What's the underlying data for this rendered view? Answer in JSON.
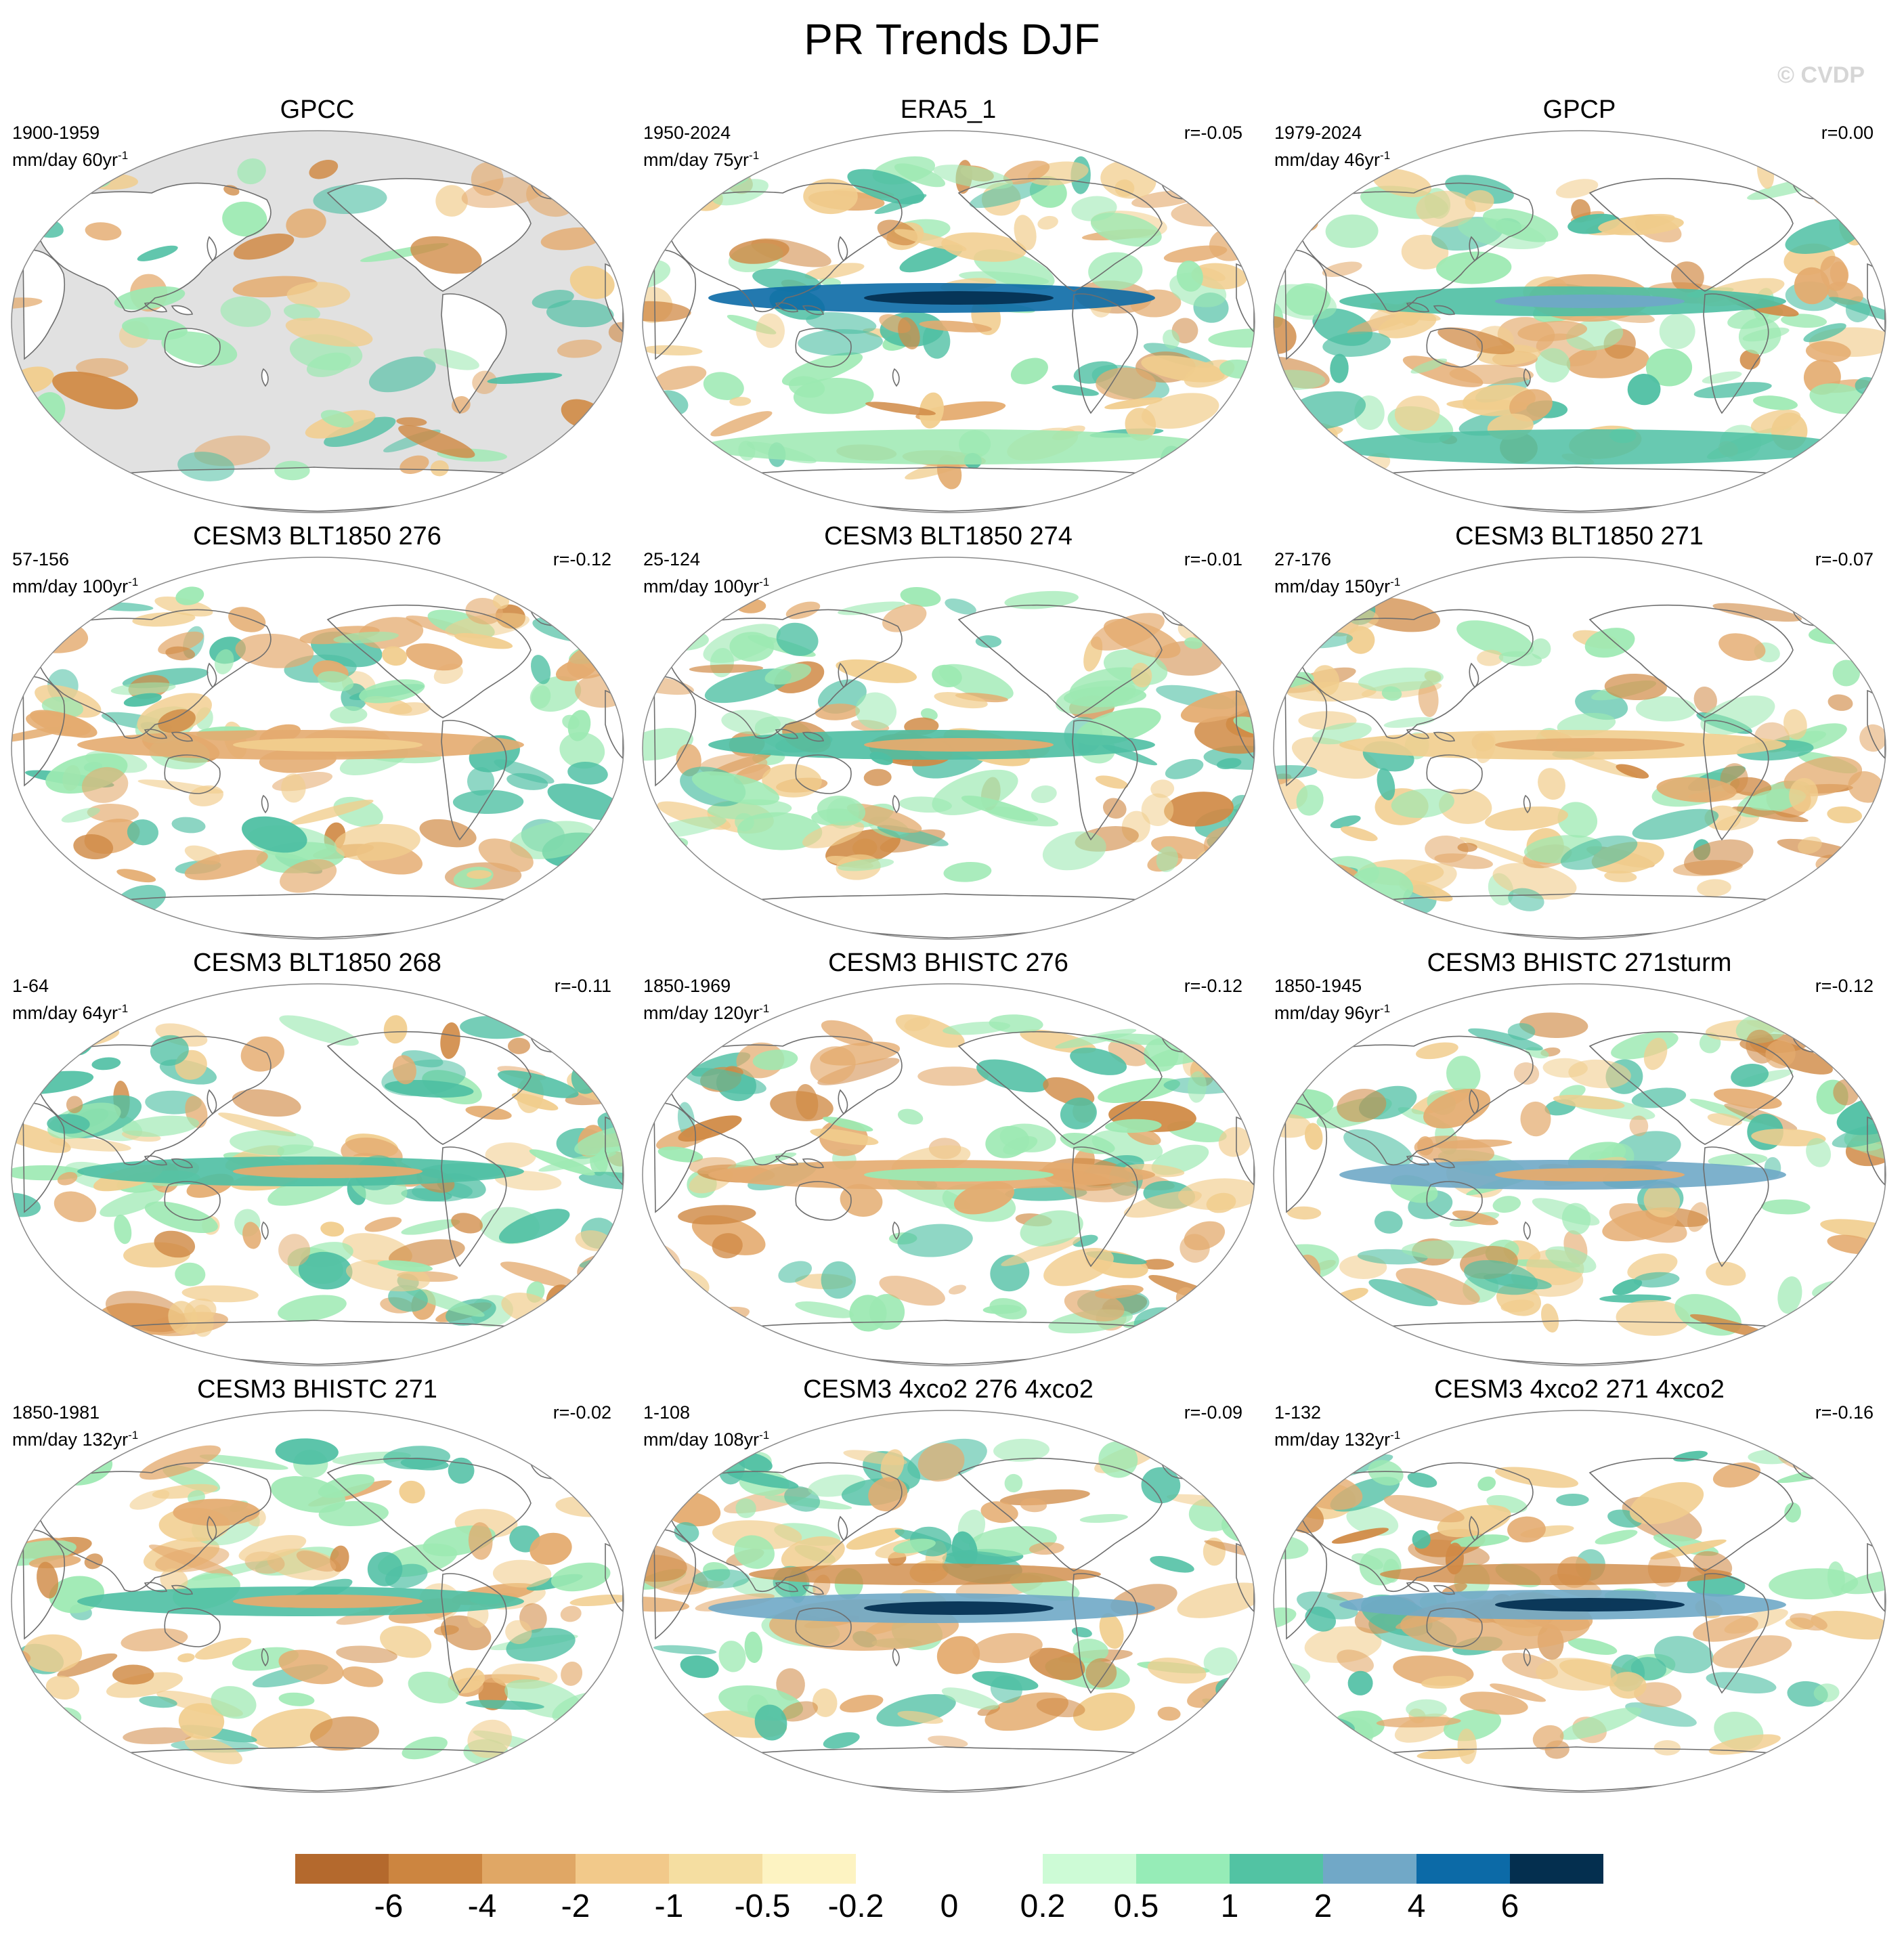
{
  "title": "PR Trends DJF",
  "watermark": "© CVDP",
  "colors": {
    "land_missing": "#e1e1e1",
    "coast": "#6e6e6e",
    "dry3": "#b4692d",
    "dry2": "#d08a45",
    "dry1": "#e4ab6f",
    "dry0": "#f1cd8d",
    "wet0": "#9ce9b2",
    "wet1": "#4ebfa3",
    "wet2": "#6fa8c7",
    "wet3": "#0b6aa6",
    "wet4": "#053153"
  },
  "colorbar": {
    "colors": [
      "#b4692d",
      "#cc8540",
      "#e0a765",
      "#f2c98a",
      "#f5dea1",
      "#fdf3c2",
      "#ffffff",
      "#ffffff",
      "#cdfbd6",
      "#96ecb7",
      "#52c3a3",
      "#71a8c7",
      "#0c6aa7",
      "#042f4f"
    ],
    "labels": [
      "-6",
      "-4",
      "-2",
      "-1",
      "-0.5",
      "-0.2",
      "0",
      "0.2",
      "0.5",
      "1",
      "2",
      "4",
      "6"
    ]
  },
  "panels": [
    {
      "title": "GPCC",
      "period": "1900-1959",
      "units_prefix": "mm/day 60yr",
      "units_exp": "-1",
      "corr": "",
      "pattern": "obs-land"
    },
    {
      "title": "ERA5_1",
      "period": "1950-2024",
      "units_prefix": "mm/day 75yr",
      "units_exp": "-1",
      "corr": "r=-0.05",
      "pattern": "era5"
    },
    {
      "title": "GPCP",
      "period": "1979-2024",
      "units_prefix": "mm/day 46yr",
      "units_exp": "-1",
      "corr": "r=0.00",
      "pattern": "gpcp"
    },
    {
      "title": "CESM3 BLT1850 276",
      "period": "57-156",
      "units_prefix": "mm/day 100yr",
      "units_exp": "-1",
      "corr": "r=-0.12",
      "pattern": "model-a"
    },
    {
      "title": "CESM3 BLT1850 274",
      "period": "25-124",
      "units_prefix": "mm/day 100yr",
      "units_exp": "-1",
      "corr": "r=-0.01",
      "pattern": "model-b"
    },
    {
      "title": "CESM3 BLT1850 271",
      "period": "27-176",
      "units_prefix": "mm/day 150yr",
      "units_exp": "-1",
      "corr": "r=-0.07",
      "pattern": "model-c"
    },
    {
      "title": "CESM3 BLT1850 268",
      "period": "1-64",
      "units_prefix": "mm/day 64yr",
      "units_exp": "-1",
      "corr": "r=-0.11",
      "pattern": "model-d"
    },
    {
      "title": "CESM3 BHISTC 276",
      "period": "1850-1969",
      "units_prefix": "mm/day 120yr",
      "units_exp": "-1",
      "corr": "r=-0.12",
      "pattern": "model-e"
    },
    {
      "title": "CESM3 BHISTC 271sturm",
      "period": "1850-1945",
      "units_prefix": "mm/day 96yr",
      "units_exp": "-1",
      "corr": "r=-0.12",
      "pattern": "model-f"
    },
    {
      "title": "CESM3 BHISTC 271",
      "period": "1850-1981",
      "units_prefix": "mm/day 132yr",
      "units_exp": "-1",
      "corr": "r=-0.02",
      "pattern": "model-g"
    },
    {
      "title": "CESM3 4xco2 276 4xco2",
      "period": "1-108",
      "units_prefix": "mm/day 108yr",
      "units_exp": "-1",
      "corr": "r=-0.09",
      "pattern": "co2-a"
    },
    {
      "title": "CESM3 4xco2 271 4xco2",
      "period": "1-132",
      "units_prefix": "mm/day 132yr",
      "units_exp": "-1",
      "corr": "r=-0.16",
      "pattern": "co2-b"
    }
  ]
}
